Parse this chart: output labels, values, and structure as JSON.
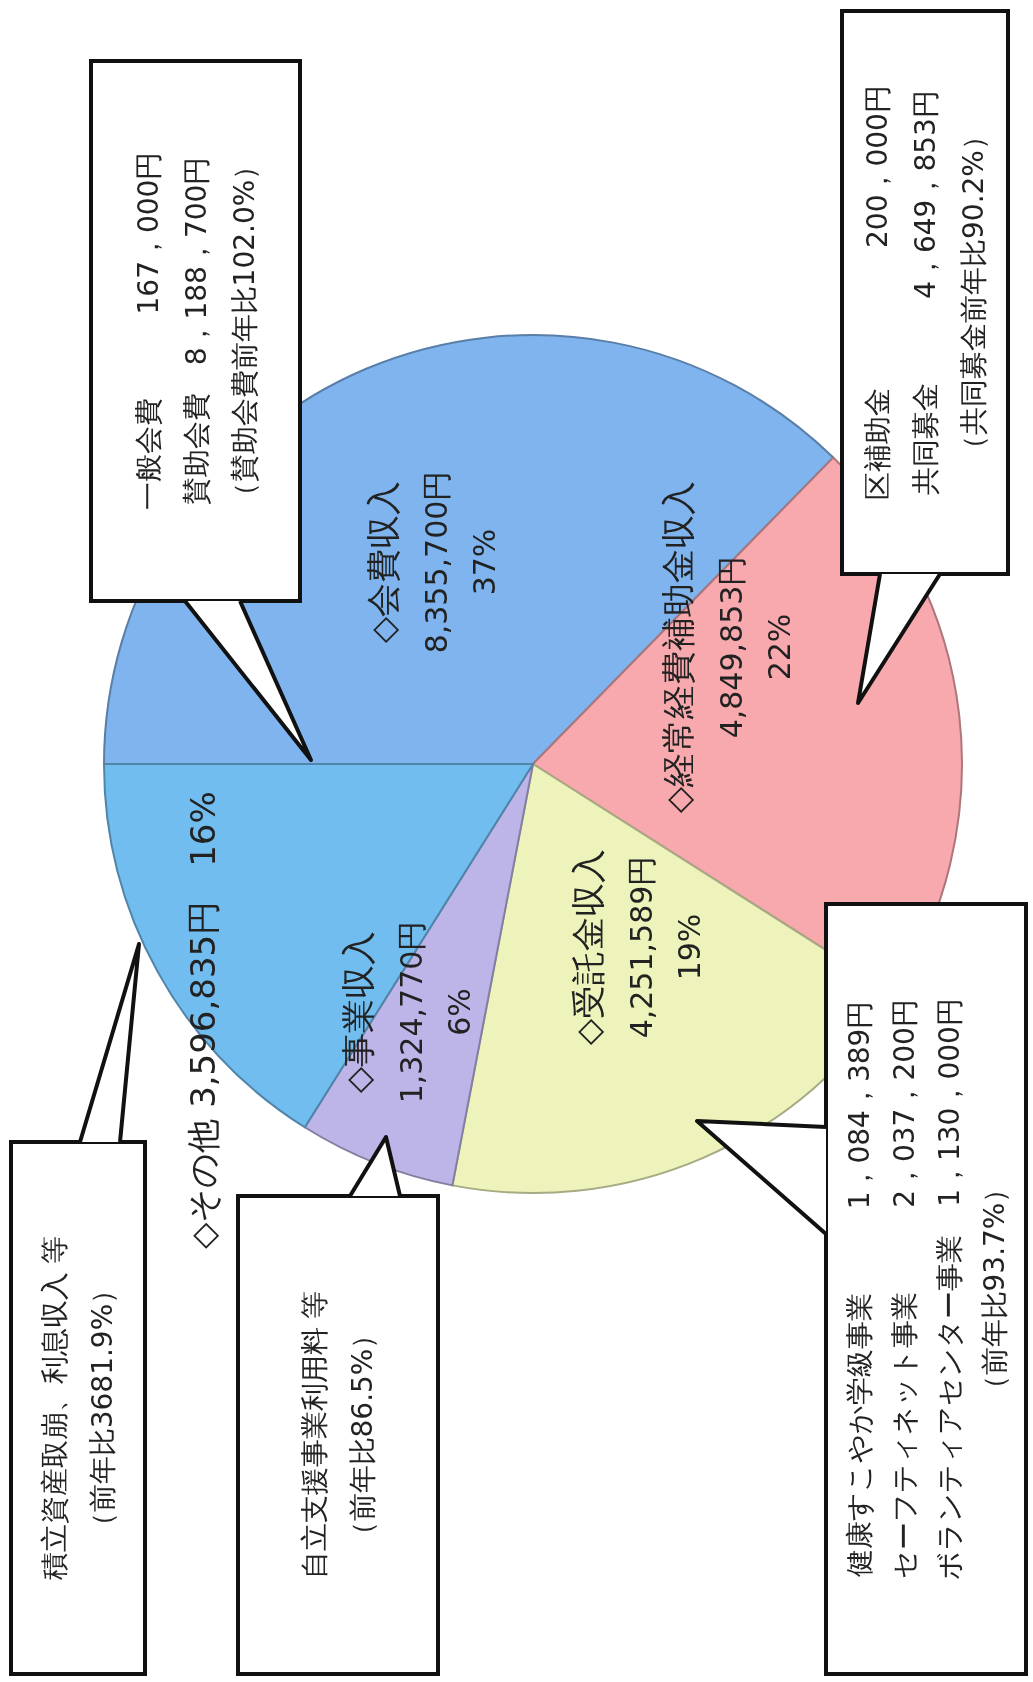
{
  "chart_data": {
    "type": "pie",
    "categories": [
      "◇会費収入",
      "◇経常経費補助金収入",
      "◇受託金収入",
      "◇事業収入",
      "◇その他"
    ],
    "values": [
      8355700,
      4849853,
      4251589,
      1324770,
      3596835
    ],
    "value_labels": [
      "8,355,700円\n37%",
      "4,849,853円\n22%",
      "4,251,589円\n19%",
      "1,324,770円\n6%",
      "3,596,835円　16%"
    ],
    "colors": [
      "#7fb4ee",
      "#f7a9ae",
      "#eef3bb",
      "#bdb4e8",
      "#72bdf0"
    ],
    "annotations": [
      "一般会費　　　167，000円",
      "賛助会費　8，188，700円",
      "（賛助会費前年比102.0%）",
      "区補助金　　　　　200，000円",
      "共同募金　　　4，649，853円",
      "（共同募金前年比90.2%）",
      "健康すこやか学級事業　　　1，084，389円",
      "セーフティネット事業　　　2，037，200円",
      "ボランティアセンター事業　1，130，000円",
      "（前年比93.7%）",
      "自立支援事業利用料 等",
      "（前年比86.5%）",
      "積立資産取崩、利息収入 等",
      "（前年比3681.9%）"
    ]
  }
}
